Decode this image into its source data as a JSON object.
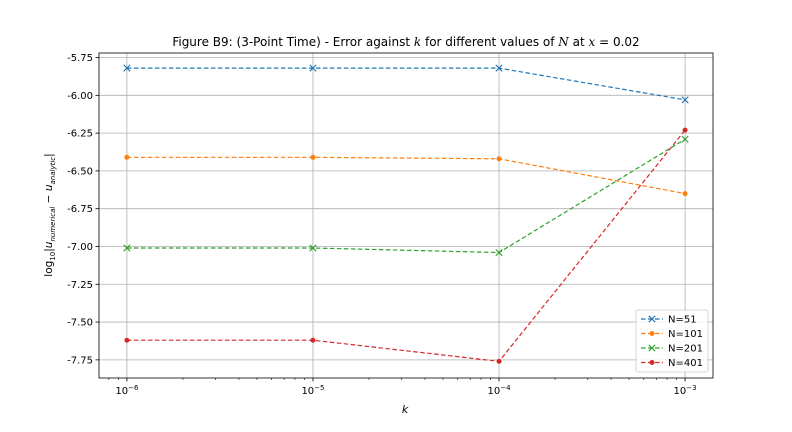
{
  "figure": {
    "title": "Figure B9: (3-Point Time) - Error against k for different values of N at x = 0.02"
  },
  "chart_data": {
    "type": "line",
    "title_parts": {
      "prefix": "Figure B9: (3-Point Time) - Error against ",
      "k": "k",
      "middle": " for different values of ",
      "n": "N",
      "suffix_at": " at ",
      "x": "x",
      "suffix_eq": " = 0.02"
    },
    "xlabel": "k",
    "ylabel": {
      "log": "log",
      "base": "10",
      "body": "|u",
      "sub1": "numerical",
      "minus": " − u",
      "sub2": "analytic",
      "end": "|"
    },
    "xscale": "log",
    "x": [
      1e-06,
      1e-05,
      0.0001,
      0.001
    ],
    "xticks": [
      {
        "base": "10",
        "exp": "−6"
      },
      {
        "base": "10",
        "exp": "−5"
      },
      {
        "base": "10",
        "exp": "−4"
      },
      {
        "base": "10",
        "exp": "−3"
      }
    ],
    "ylim": [
      -7.87,
      -5.72
    ],
    "yticks": [
      "-5.75",
      "-6.00",
      "-6.25",
      "-6.50",
      "-6.75",
      "-7.00",
      "-7.25",
      "-7.50",
      "-7.75"
    ],
    "ytick_values": [
      -5.75,
      -6.0,
      -6.25,
      -6.5,
      -6.75,
      -7.0,
      -7.25,
      -7.5,
      -7.75
    ],
    "grid": true,
    "legend_position": "bottom-right",
    "series": [
      {
        "name": "N=51",
        "color": "#1f77b4",
        "marker": "x",
        "values": [
          -5.82,
          -5.82,
          -5.82,
          -6.03
        ]
      },
      {
        "name": "N=101",
        "color": "#ff7f0e",
        "marker": "o",
        "values": [
          -6.41,
          -6.41,
          -6.42,
          -6.65
        ]
      },
      {
        "name": "N=201",
        "color": "#2ca02c",
        "marker": "x",
        "values": [
          -7.01,
          -7.01,
          -7.04,
          -6.29
        ]
      },
      {
        "name": "N=401",
        "color": "#d62728",
        "marker": "o",
        "values": [
          -7.62,
          -7.62,
          -7.76,
          -6.23
        ]
      }
    ]
  }
}
